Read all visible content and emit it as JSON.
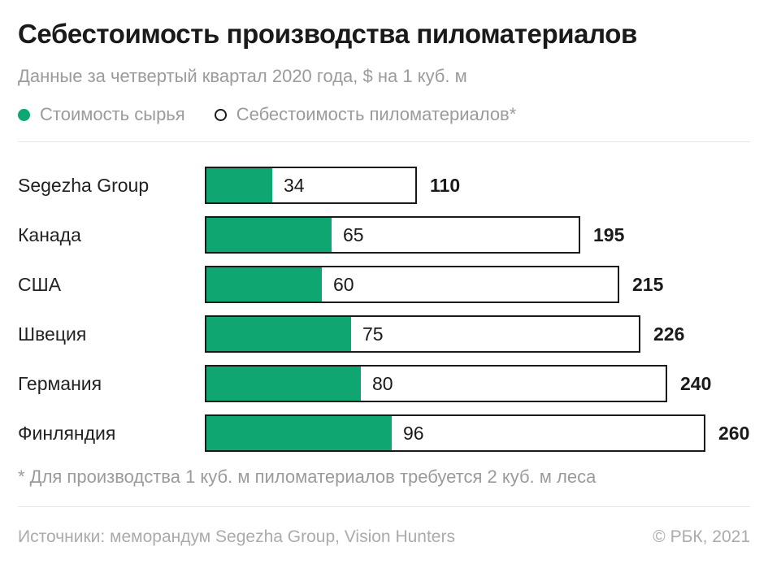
{
  "header": {
    "title": "Себестоимость производства пиломатериалов",
    "subtitle": "Данные за четвертый квартал 2020 года, $ на 1 куб. м"
  },
  "legend": {
    "raw_materials_label": "Стоимость сырья",
    "lumber_cost_label": "Себестоимость пиломатериалов*"
  },
  "chart_data": {
    "type": "bar",
    "orientation": "horizontal",
    "title": "Себестоимость производства пиломатериалов",
    "subtitle": "Данные за четвертый квартал 2020 года, $ на 1 куб. м",
    "unit": "$ на 1 куб. м",
    "categories": [
      "Segezha Group",
      "Канада",
      "США",
      "Швеция",
      "Германия",
      "Финляндия"
    ],
    "series": [
      {
        "name": "Стоимость сырья",
        "values": [
          34,
          65,
          60,
          75,
          80,
          96
        ]
      },
      {
        "name": "Себестоимость пиломатериалов*",
        "values": [
          110,
          195,
          215,
          226,
          240,
          260
        ]
      }
    ],
    "xlim": [
      0,
      260
    ],
    "grid": false,
    "legend_position": "top",
    "value_labels": "raw inside bar, total bold outside bar"
  },
  "footnote": "* Для производства 1 куб. м пиломатериалов требуется 2 куб. м леса",
  "footer": {
    "sources": "Источники: меморандум Segezha Group, Vision Hunters",
    "copyright": "© РБК, 2021"
  },
  "colors": {
    "accent_green": "#0FA672",
    "bar_border": "#1A1A1A",
    "text_dark": "#1A1A1A",
    "text_gray": "#9B9B9B",
    "divider": "#E6E6E6"
  }
}
